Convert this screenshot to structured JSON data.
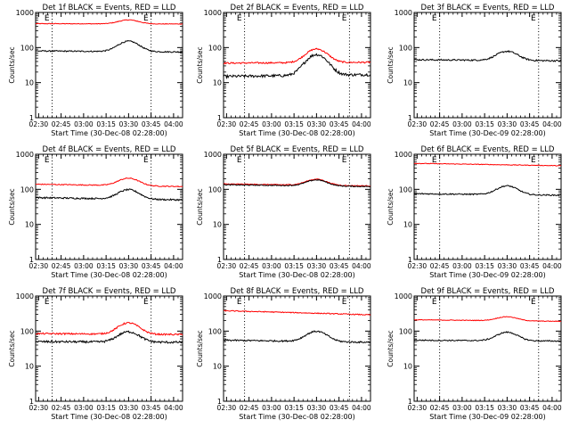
{
  "figure": {
    "x_ticks": [
      "02:30",
      "02:45",
      "03:00",
      "03:15",
      "03:30",
      "03:45",
      "04:00"
    ],
    "y_ticks": [
      "1",
      "10",
      "100",
      "1000"
    ],
    "y_label": "Counts/sec",
    "marker_labels": [
      "E",
      "E"
    ],
    "colors": {
      "events": "#000000",
      "lld": "#ff0000"
    }
  },
  "chart_data": [
    {
      "type": "line",
      "title": "Det 1f BLACK = Events, RED = LLD",
      "xlabel": "Start Time (30-Dec-08 02:28:00)",
      "ylabel": "Counts/sec",
      "ylim": [
        1,
        1000
      ],
      "yscale": "log",
      "xlim_minutes": [
        0,
        98
      ],
      "markers_minutes": [
        11,
        77
      ],
      "lld_present": true,
      "events": {
        "base": 80,
        "start": 80,
        "end": 75,
        "peak_minutes": 62,
        "peak": 155,
        "noise": 0.04
      },
      "lld": {
        "base": 480,
        "start": 480,
        "end": 470,
        "peak_minutes": 62,
        "peak": 620,
        "noise": 0.02
      }
    },
    {
      "type": "line",
      "title": "Det 2f BLACK = Events, RED = LLD",
      "xlabel": "Start Time (30-Dec-08 02:28:00)",
      "ylabel": "Counts/sec",
      "ylim": [
        1,
        1000
      ],
      "yscale": "log",
      "xlim_minutes": [
        0,
        98
      ],
      "markers_minutes": [
        14,
        84
      ],
      "lld_present": true,
      "events": {
        "base": 15,
        "start": 15,
        "end": 17,
        "peak_minutes": 62,
        "peak": 62,
        "noise": 0.09
      },
      "lld": {
        "base": 36,
        "start": 36,
        "end": 38,
        "peak_minutes": 62,
        "peak": 90,
        "noise": 0.05
      }
    },
    {
      "type": "line",
      "title": "Det 3f BLACK = Events, RED = LLD",
      "xlabel": "Start Time (30-Dec-09 02:28:00)",
      "ylabel": "Counts/sec",
      "ylim": [
        1,
        1000
      ],
      "yscale": "log",
      "xlim_minutes": [
        0,
        98
      ],
      "markers_minutes": [
        17,
        83
      ],
      "lld_present": false,
      "events": {
        "base": 45,
        "start": 45,
        "end": 42,
        "peak_minutes": 62,
        "peak": 80,
        "noise": 0.05
      }
    },
    {
      "type": "line",
      "title": "Det 4f BLACK = Events, RED = LLD",
      "xlabel": "Start Time (30-Dec-08 02:28:00)",
      "ylabel": "Counts/sec",
      "ylim": [
        1,
        1000
      ],
      "yscale": "log",
      "xlim_minutes": [
        0,
        98
      ],
      "markers_minutes": [
        11,
        77
      ],
      "lld_present": true,
      "events": {
        "base": 55,
        "start": 58,
        "end": 50,
        "peak_minutes": 62,
        "peak": 100,
        "noise": 0.05
      },
      "lld": {
        "base": 130,
        "start": 140,
        "end": 120,
        "peak_minutes": 62,
        "peak": 210,
        "noise": 0.03
      }
    },
    {
      "type": "line",
      "title": "Det 5f BLACK = Events, RED = LLD",
      "xlabel": "Start Time (30-Dec-08 02:28:00)",
      "ylabel": "Counts/sec",
      "ylim": [
        1,
        1000
      ],
      "yscale": "log",
      "xlim_minutes": [
        0,
        98
      ],
      "markers_minutes": [
        14,
        84
      ],
      "lld_present": true,
      "events": {
        "base": 125,
        "start": 135,
        "end": 120,
        "peak_minutes": 62,
        "peak": 185,
        "noise": 0.03
      },
      "lld": {
        "base": 132,
        "start": 142,
        "end": 125,
        "peak_minutes": 62,
        "peak": 195,
        "noise": 0.03
      }
    },
    {
      "type": "line",
      "title": "Det 6f BLACK = Events, RED = LLD",
      "xlabel": "Start Time (30-Dec-09 02:28:00)",
      "ylabel": "Counts/sec",
      "ylim": [
        1,
        1000
      ],
      "yscale": "log",
      "xlim_minutes": [
        0,
        98
      ],
      "markers_minutes": [
        17,
        83
      ],
      "lld_present": true,
      "events": {
        "base": 70,
        "start": 75,
        "end": 68,
        "peak_minutes": 62,
        "peak": 125,
        "noise": 0.04
      },
      "lld": {
        "base": 480,
        "start": 550,
        "end": 470,
        "peak_minutes": 62,
        "peak": 480,
        "noise": 0.02
      }
    },
    {
      "type": "line",
      "title": "Det 7f BLACK = Events, RED = LLD",
      "xlabel": "Start Time (30-Dec-08 02:28:00)",
      "ylabel": "Counts/sec",
      "ylim": [
        1,
        1000
      ],
      "yscale": "log",
      "xlim_minutes": [
        0,
        98
      ],
      "markers_minutes": [
        11,
        77
      ],
      "lld_present": true,
      "events": {
        "base": 48,
        "start": 50,
        "end": 48,
        "peak_minutes": 62,
        "peak": 95,
        "noise": 0.07
      },
      "lld": {
        "base": 80,
        "start": 85,
        "end": 80,
        "peak_minutes": 62,
        "peak": 170,
        "noise": 0.05
      }
    },
    {
      "type": "line",
      "title": "Det 8f BLACK = Events, RED = LLD",
      "xlabel": "Start Time (30-Dec-08 02:28:00)",
      "ylabel": "Counts/sec",
      "ylim": [
        1,
        1000
      ],
      "yscale": "log",
      "xlim_minutes": [
        0,
        98
      ],
      "markers_minutes": [
        14,
        84
      ],
      "lld_present": true,
      "events": {
        "base": 52,
        "start": 55,
        "end": 48,
        "peak_minutes": 62,
        "peak": 100,
        "noise": 0.05
      },
      "lld": {
        "base": 330,
        "start": 380,
        "end": 290,
        "peak_minutes": 62,
        "peak": 330,
        "noise": 0.03
      }
    },
    {
      "type": "line",
      "title": "Det 9f BLACK = Events, RED = LLD",
      "xlabel": "Start Time (30-Dec-09 02:28:00)",
      "ylabel": "Counts/sec",
      "ylim": [
        1,
        1000
      ],
      "yscale": "log",
      "xlim_minutes": [
        0,
        98
      ],
      "markers_minutes": [
        17,
        83
      ],
      "lld_present": true,
      "events": {
        "base": 55,
        "start": 55,
        "end": 52,
        "peak_minutes": 62,
        "peak": 95,
        "noise": 0.04
      },
      "lld": {
        "base": 200,
        "start": 210,
        "end": 190,
        "peak_minutes": 62,
        "peak": 260,
        "noise": 0.02
      }
    }
  ]
}
